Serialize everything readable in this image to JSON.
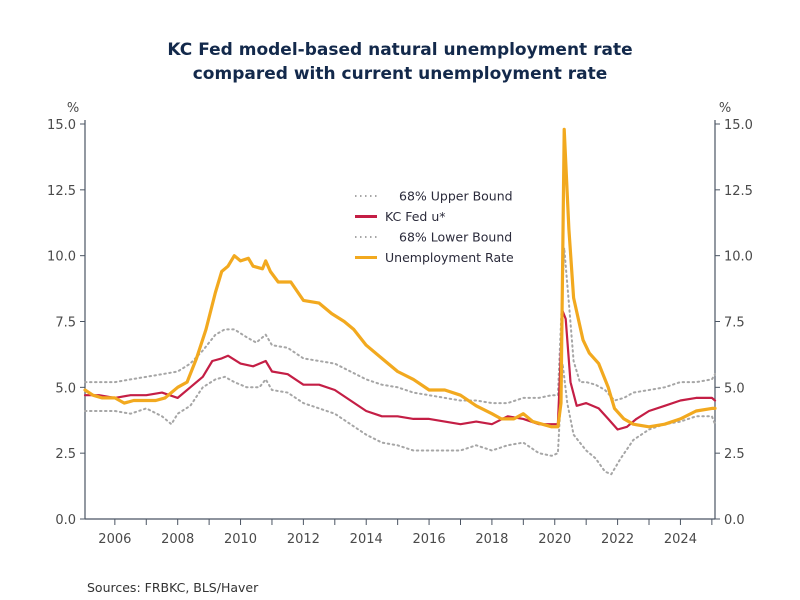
{
  "chart_data": {
    "type": "line",
    "title": [
      "KC Fed model-based natural unemployment rate",
      "compared with current unemployment rate"
    ],
    "ylabel_left": "%",
    "ylabel_right": "%",
    "xlim": [
      2005.05,
      2025.1
    ],
    "ylim": [
      0,
      15
    ],
    "yticks": [
      0,
      2.5,
      5,
      7.5,
      10,
      12.5,
      15
    ],
    "ytick_labels": [
      "0.0",
      "2.5",
      "5.0",
      "7.5",
      "10.0",
      "12.5",
      "15.0"
    ],
    "xticks_minor": [
      2006,
      2007,
      2008,
      2009,
      2010,
      2011,
      2012,
      2013,
      2014,
      2015,
      2016,
      2017,
      2018,
      2019,
      2020,
      2021,
      2022,
      2023,
      2024,
      2025
    ],
    "xtick_labels": [
      "2006",
      "2008",
      "2010",
      "2012",
      "2014",
      "2016",
      "2018",
      "2020",
      "2022",
      "2024"
    ],
    "grid": false,
    "legend_position": "upper-center",
    "source": "Sources:  FRBKC, BLS/Haver",
    "series": [
      {
        "name": "68% Upper Bound",
        "style": "dotted",
        "color": "#a6a6a6",
        "points": [
          [
            2005.05,
            5.2
          ],
          [
            2005.5,
            5.2
          ],
          [
            2006,
            5.2
          ],
          [
            2006.5,
            5.3
          ],
          [
            2007,
            5.4
          ],
          [
            2007.5,
            5.5
          ],
          [
            2008,
            5.6
          ],
          [
            2008.4,
            5.9
          ],
          [
            2008.8,
            6.4
          ],
          [
            2009.2,
            7.0
          ],
          [
            2009.5,
            7.2
          ],
          [
            2009.8,
            7.2
          ],
          [
            2010.2,
            6.9
          ],
          [
            2010.5,
            6.7
          ],
          [
            2010.8,
            7.0
          ],
          [
            2011,
            6.6
          ],
          [
            2011.5,
            6.5
          ],
          [
            2012,
            6.1
          ],
          [
            2012.5,
            6.0
          ],
          [
            2013,
            5.9
          ],
          [
            2013.5,
            5.6
          ],
          [
            2014,
            5.3
          ],
          [
            2014.5,
            5.1
          ],
          [
            2015,
            5.0
          ],
          [
            2015.5,
            4.8
          ],
          [
            2016,
            4.7
          ],
          [
            2016.5,
            4.6
          ],
          [
            2017,
            4.5
          ],
          [
            2017.5,
            4.5
          ],
          [
            2018,
            4.4
          ],
          [
            2018.5,
            4.4
          ],
          [
            2019,
            4.6
          ],
          [
            2019.5,
            4.6
          ],
          [
            2019.9,
            4.7
          ],
          [
            2020.1,
            4.7
          ],
          [
            2020.3,
            10.3
          ],
          [
            2020.45,
            8.2
          ],
          [
            2020.6,
            6.0
          ],
          [
            2020.8,
            5.2
          ],
          [
            2021,
            5.2
          ],
          [
            2021.3,
            5.1
          ],
          [
            2021.6,
            4.9
          ],
          [
            2021.9,
            4.5
          ],
          [
            2022.2,
            4.6
          ],
          [
            2022.5,
            4.8
          ],
          [
            2023,
            4.9
          ],
          [
            2023.5,
            5.0
          ],
          [
            2024,
            5.2
          ],
          [
            2024.5,
            5.2
          ],
          [
            2025,
            5.3
          ],
          [
            2025.1,
            5.5
          ]
        ]
      },
      {
        "name": "KC Fed u*",
        "style": "solid",
        "color": "#c41e45",
        "points": [
          [
            2005.05,
            4.7
          ],
          [
            2005.5,
            4.7
          ],
          [
            2006,
            4.6
          ],
          [
            2006.5,
            4.7
          ],
          [
            2007,
            4.7
          ],
          [
            2007.5,
            4.8
          ],
          [
            2008,
            4.6
          ],
          [
            2008.4,
            5.0
          ],
          [
            2008.8,
            5.4
          ],
          [
            2009.1,
            6.0
          ],
          [
            2009.4,
            6.1
          ],
          [
            2009.6,
            6.2
          ],
          [
            2010,
            5.9
          ],
          [
            2010.4,
            5.8
          ],
          [
            2010.8,
            6.0
          ],
          [
            2011,
            5.6
          ],
          [
            2011.5,
            5.5
          ],
          [
            2012,
            5.1
          ],
          [
            2012.5,
            5.1
          ],
          [
            2013,
            4.9
          ],
          [
            2013.5,
            4.5
          ],
          [
            2014,
            4.1
          ],
          [
            2014.5,
            3.9
          ],
          [
            2015,
            3.9
          ],
          [
            2015.5,
            3.8
          ],
          [
            2016,
            3.8
          ],
          [
            2016.5,
            3.7
          ],
          [
            2017,
            3.6
          ],
          [
            2017.5,
            3.7
          ],
          [
            2018,
            3.6
          ],
          [
            2018.5,
            3.9
          ],
          [
            2019,
            3.8
          ],
          [
            2019.5,
            3.6
          ],
          [
            2019.9,
            3.6
          ],
          [
            2020.1,
            3.6
          ],
          [
            2020.25,
            7.9
          ],
          [
            2020.35,
            7.6
          ],
          [
            2020.5,
            5.2
          ],
          [
            2020.7,
            4.3
          ],
          [
            2021,
            4.4
          ],
          [
            2021.4,
            4.2
          ],
          [
            2021.7,
            3.8
          ],
          [
            2022,
            3.4
          ],
          [
            2022.3,
            3.5
          ],
          [
            2022.6,
            3.8
          ],
          [
            2023,
            4.1
          ],
          [
            2023.5,
            4.3
          ],
          [
            2024,
            4.5
          ],
          [
            2024.5,
            4.6
          ],
          [
            2025,
            4.6
          ],
          [
            2025.1,
            4.5
          ]
        ]
      },
      {
        "name": "68% Lower Bound",
        "style": "dotted",
        "color": "#a6a6a6",
        "points": [
          [
            2005.05,
            4.1
          ],
          [
            2005.5,
            4.1
          ],
          [
            2006,
            4.1
          ],
          [
            2006.5,
            4.0
          ],
          [
            2007,
            4.2
          ],
          [
            2007.5,
            3.9
          ],
          [
            2007.8,
            3.6
          ],
          [
            2008,
            4.0
          ],
          [
            2008.4,
            4.3
          ],
          [
            2008.8,
            5.0
          ],
          [
            2009.2,
            5.3
          ],
          [
            2009.5,
            5.4
          ],
          [
            2009.8,
            5.2
          ],
          [
            2010.2,
            5.0
          ],
          [
            2010.6,
            5.0
          ],
          [
            2010.8,
            5.3
          ],
          [
            2011,
            4.9
          ],
          [
            2011.5,
            4.8
          ],
          [
            2012,
            4.4
          ],
          [
            2012.5,
            4.2
          ],
          [
            2013,
            4.0
          ],
          [
            2013.5,
            3.6
          ],
          [
            2014,
            3.2
          ],
          [
            2014.5,
            2.9
          ],
          [
            2015,
            2.8
          ],
          [
            2015.5,
            2.6
          ],
          [
            2016,
            2.6
          ],
          [
            2016.5,
            2.6
          ],
          [
            2017,
            2.6
          ],
          [
            2017.5,
            2.8
          ],
          [
            2018,
            2.6
          ],
          [
            2018.5,
            2.8
          ],
          [
            2019,
            2.9
          ],
          [
            2019.5,
            2.5
          ],
          [
            2019.9,
            2.4
          ],
          [
            2020.1,
            2.5
          ],
          [
            2020.25,
            5.9
          ],
          [
            2020.4,
            4.4
          ],
          [
            2020.6,
            3.2
          ],
          [
            2021,
            2.6
          ],
          [
            2021.3,
            2.3
          ],
          [
            2021.6,
            1.8
          ],
          [
            2021.8,
            1.7
          ],
          [
            2022.1,
            2.3
          ],
          [
            2022.5,
            3.0
          ],
          [
            2023,
            3.4
          ],
          [
            2023.5,
            3.6
          ],
          [
            2024,
            3.7
          ],
          [
            2024.5,
            3.9
          ],
          [
            2025,
            3.9
          ],
          [
            2025.1,
            3.6
          ]
        ]
      },
      {
        "name": "Unemployment Rate",
        "style": "solid",
        "color": "#f2a91f",
        "points": [
          [
            2005.05,
            4.9
          ],
          [
            2005.3,
            4.7
          ],
          [
            2005.6,
            4.6
          ],
          [
            2006,
            4.6
          ],
          [
            2006.3,
            4.4
          ],
          [
            2006.6,
            4.5
          ],
          [
            2007,
            4.5
          ],
          [
            2007.3,
            4.5
          ],
          [
            2007.6,
            4.6
          ],
          [
            2008,
            5.0
          ],
          [
            2008.3,
            5.2
          ],
          [
            2008.6,
            6.1
          ],
          [
            2008.9,
            7.2
          ],
          [
            2009.2,
            8.6
          ],
          [
            2009.4,
            9.4
          ],
          [
            2009.6,
            9.6
          ],
          [
            2009.8,
            10.0
          ],
          [
            2010,
            9.8
          ],
          [
            2010.25,
            9.9
          ],
          [
            2010.4,
            9.6
          ],
          [
            2010.7,
            9.5
          ],
          [
            2010.8,
            9.8
          ],
          [
            2010.95,
            9.4
          ],
          [
            2011.2,
            9.0
          ],
          [
            2011.6,
            9.0
          ],
          [
            2012,
            8.3
          ],
          [
            2012.5,
            8.2
          ],
          [
            2012.9,
            7.8
          ],
          [
            2013.3,
            7.5
          ],
          [
            2013.6,
            7.2
          ],
          [
            2014,
            6.6
          ],
          [
            2014.5,
            6.1
          ],
          [
            2015,
            5.6
          ],
          [
            2015.5,
            5.3
          ],
          [
            2016,
            4.9
          ],
          [
            2016.5,
            4.9
          ],
          [
            2017,
            4.7
          ],
          [
            2017.5,
            4.3
          ],
          [
            2018,
            4.0
          ],
          [
            2018.3,
            3.8
          ],
          [
            2018.7,
            3.8
          ],
          [
            2019,
            4.0
          ],
          [
            2019.3,
            3.7
          ],
          [
            2019.6,
            3.6
          ],
          [
            2019.9,
            3.5
          ],
          [
            2020.1,
            3.5
          ],
          [
            2020.2,
            4.4
          ],
          [
            2020.3,
            14.8
          ],
          [
            2020.45,
            11.0
          ],
          [
            2020.6,
            8.4
          ],
          [
            2020.9,
            6.8
          ],
          [
            2021.1,
            6.3
          ],
          [
            2021.4,
            5.9
          ],
          [
            2021.7,
            5.0
          ],
          [
            2021.9,
            4.2
          ],
          [
            2022.2,
            3.8
          ],
          [
            2022.5,
            3.6
          ],
          [
            2023,
            3.5
          ],
          [
            2023.5,
            3.6
          ],
          [
            2024,
            3.8
          ],
          [
            2024.5,
            4.1
          ],
          [
            2025,
            4.2
          ],
          [
            2025.1,
            4.2
          ]
        ]
      }
    ]
  }
}
